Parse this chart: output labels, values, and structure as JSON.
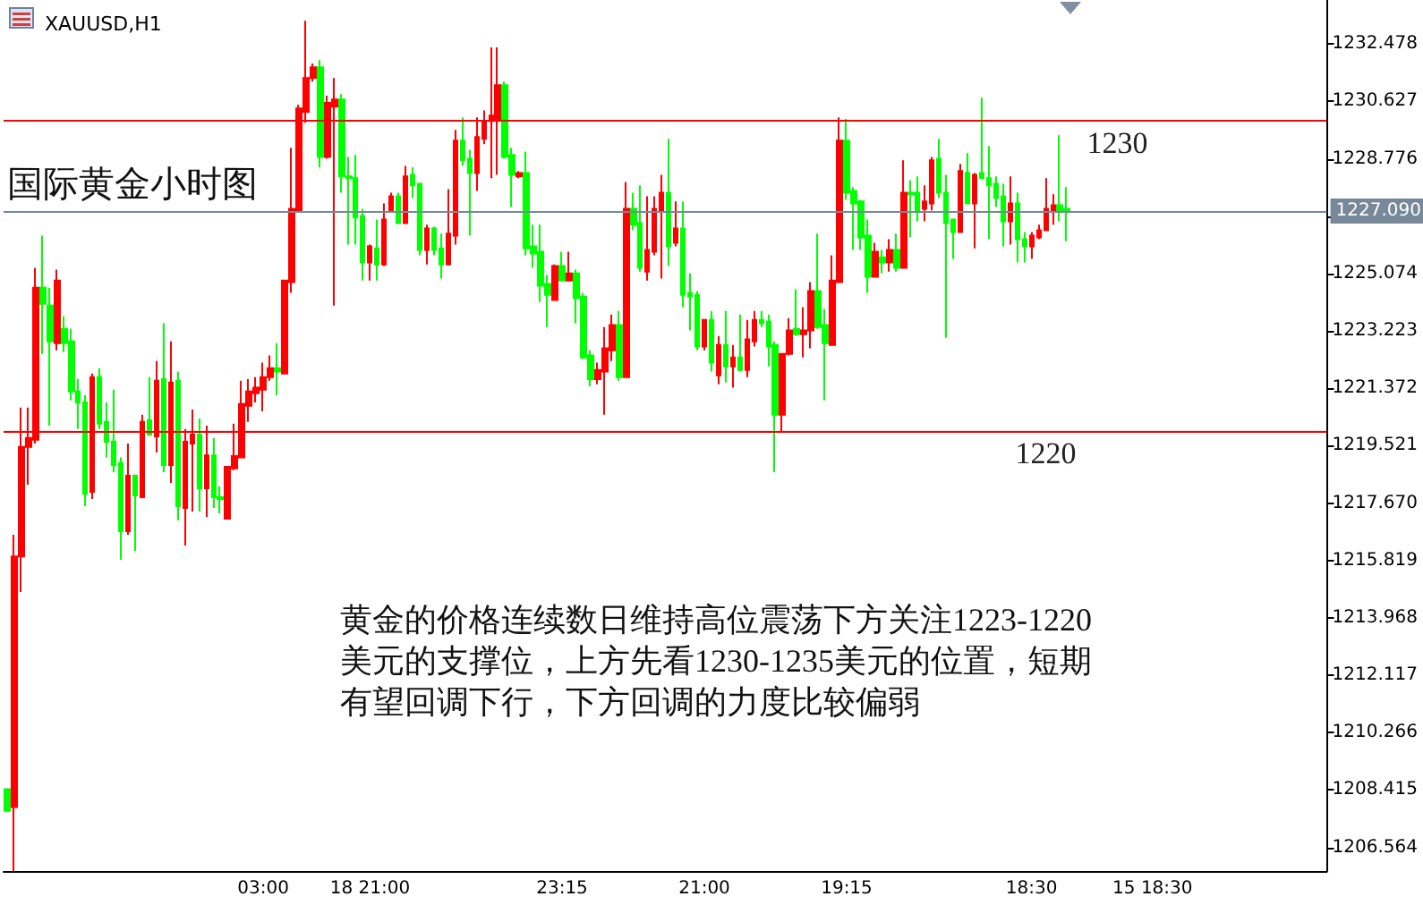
{
  "chart_data": {
    "type": "candlestick",
    "title": "XAUUSD,H1",
    "categories": [
      null,
      null,
      null,
      null,
      null,
      null,
      null,
      null,
      null,
      null,
      null,
      null,
      null,
      null,
      null,
      null,
      null,
      null,
      null,
      null,
      null,
      null,
      null,
      null,
      null,
      null,
      null,
      null,
      null,
      null,
      null,
      null,
      null,
      null,
      null,
      null,
      "03:00",
      null,
      null,
      null,
      null,
      null,
      null,
      null,
      null,
      null,
      null,
      null,
      null,
      null,
      null,
      "18 21:00",
      null,
      null,
      null,
      null,
      null,
      null,
      null,
      null,
      null,
      null,
      null,
      null,
      null,
      null,
      null,
      null,
      null,
      null,
      null,
      null,
      null,
      null,
      null,
      null,
      null,
      null,
      "23:15",
      null,
      null,
      null,
      null,
      null,
      null,
      null,
      null,
      null,
      null,
      null,
      null,
      null,
      null,
      null,
      null,
      null,
      null,
      null,
      "21:00",
      null,
      null,
      null,
      null,
      null,
      null,
      null,
      null,
      null,
      null,
      null,
      null,
      null,
      null,
      null,
      null,
      null,
      null,
      null,
      "19:15",
      null,
      null,
      null,
      null,
      null,
      null,
      null,
      null,
      null,
      null,
      null,
      null,
      null,
      null,
      null,
      null,
      null,
      null,
      null,
      null,
      null,
      null,
      null,
      null,
      null,
      "18:30",
      null,
      null,
      null,
      null,
      null,
      null,
      null,
      null,
      null,
      null,
      null,
      null,
      null,
      null,
      null,
      null,
      "15 18:30",
      null,
      null,
      null,
      null,
      null,
      null,
      null,
      null,
      null,
      null,
      null,
      null,
      null,
      null,
      null,
      null,
      null,
      null,
      null,
      null,
      null,
      null,
      null,
      null
    ],
    "ohlc": [
      [
        1208.44,
        1208.44,
        1207.74,
        1207.74
      ],
      [
        1207.86,
        1216.65,
        1205.8,
        1215.95
      ],
      [
        1215.95,
        1220.75,
        1214.8,
        1219.48
      ],
      [
        1219.48,
        1220.75,
        1218.26,
        1219.77
      ],
      [
        1219.71,
        1225.26,
        1219.59,
        1224.62
      ],
      [
        1224.62,
        1226.3,
        1222.48,
        1224.1
      ],
      [
        1224.04,
        1224.62,
        1220.17,
        1222.89
      ],
      [
        1222.83,
        1225.2,
        1222.6,
        1224.85
      ],
      [
        1223.29,
        1223.7,
        1222.54,
        1222.83
      ],
      [
        1222.89,
        1223.29,
        1220.98,
        1221.27
      ],
      [
        1221.27,
        1221.67,
        1220.06,
        1220.92
      ],
      [
        1220.92,
        1221.15,
        1217.57,
        1217.97
      ],
      [
        1218.03,
        1221.85,
        1217.8,
        1221.73
      ],
      [
        1221.73,
        1222.02,
        1220.06,
        1220.23
      ],
      [
        1220.29,
        1220.92,
        1219.14,
        1219.65
      ],
      [
        1219.65,
        1221.33,
        1218.67,
        1218.9
      ],
      [
        1218.96,
        1219.14,
        1215.84,
        1216.76
      ],
      [
        1216.76,
        1219.59,
        1216.65,
        1218.55
      ],
      [
        1218.55,
        1218.55,
        1216.13,
        1217.92
      ],
      [
        1217.86,
        1220.52,
        1217.86,
        1220.29
      ],
      [
        1220.34,
        1221.73,
        1219.88,
        1219.88
      ],
      [
        1219.82,
        1222.25,
        1219.3,
        1221.62
      ],
      [
        1221.67,
        1223.47,
        1218.67,
        1218.9
      ],
      [
        1218.9,
        1222.89,
        1218.32,
        1221.56
      ],
      [
        1221.62,
        1221.91,
        1217.11,
        1217.57
      ],
      [
        1217.51,
        1220.06,
        1216.3,
        1219.65
      ],
      [
        1219.59,
        1220.69,
        1217.4,
        1219.88
      ],
      [
        1219.88,
        1220.4,
        1217.4,
        1218.15
      ],
      [
        1218.15,
        1220.17,
        1217.22,
        1219.21
      ],
      [
        1219.21,
        1219.77,
        1217.51,
        1217.86
      ],
      [
        1217.86,
        1218.21,
        1217.34,
        1217.8
      ],
      [
        1217.17,
        1218.84,
        1217.17,
        1218.84
      ],
      [
        1218.79,
        1220.23,
        1218.73,
        1219.19
      ],
      [
        1219.14,
        1221.62,
        1219.14,
        1220.87
      ],
      [
        1220.81,
        1221.67,
        1220.29,
        1221.27
      ],
      [
        1221.21,
        1221.73,
        1220.92,
        1221.39
      ],
      [
        1221.33,
        1222.2,
        1220.63,
        1221.73
      ],
      [
        1221.73,
        1222.43,
        1221.62,
        1222.02
      ],
      [
        1222.02,
        1222.83,
        1221.15,
        1221.91
      ],
      [
        1221.85,
        1224.85,
        1221.85,
        1224.85
      ],
      [
        1224.8,
        1229.13,
        1224.45,
        1227.16
      ],
      [
        1227.11,
        1230.52,
        1227.11,
        1230.4
      ],
      [
        1230.29,
        1233.23,
        1229.94,
        1231.38
      ],
      [
        1231.38,
        1231.85,
        1231.27,
        1231.73
      ],
      [
        1231.73,
        1231.96,
        1228.5,
        1228.84
      ],
      [
        1228.84,
        1230.81,
        1228.78,
        1230.58
      ],
      [
        1230.46,
        1231.38,
        1224.04,
        1230.69
      ],
      [
        1230.69,
        1230.86,
        1227.68,
        1228.21
      ],
      [
        1228.21,
        1228.84,
        1226.01,
        1228.15
      ],
      [
        1228.15,
        1228.9,
        1226.01,
        1226.88
      ],
      [
        1226.93,
        1227.16,
        1224.85,
        1225.43
      ],
      [
        1225.43,
        1226.01,
        1224.85,
        1225.95
      ],
      [
        1225.89,
        1226.82,
        1224.85,
        1225.37
      ],
      [
        1225.37,
        1227.34,
        1225.32,
        1226.82
      ],
      [
        1227.11,
        1227.68,
        1227.11,
        1227.57
      ],
      [
        1227.57,
        1227.68,
        1226.7,
        1226.7
      ],
      [
        1226.7,
        1228.55,
        1226.7,
        1228.21
      ],
      [
        1228.26,
        1228.5,
        1227.51,
        1227.92
      ],
      [
        1227.97,
        1227.97,
        1225.66,
        1225.84
      ],
      [
        1225.84,
        1226.65,
        1225.37,
        1226.53
      ],
      [
        1226.53,
        1226.59,
        1225.66,
        1225.84
      ],
      [
        1225.89,
        1226.36,
        1224.91,
        1225.37
      ],
      [
        1225.37,
        1227.8,
        1225.37,
        1226.36
      ],
      [
        1226.3,
        1229.71,
        1226.01,
        1229.36
      ],
      [
        1229.36,
        1230.11,
        1228.55,
        1228.73
      ],
      [
        1228.78,
        1229.07,
        1226.3,
        1228.32
      ],
      [
        1228.32,
        1230.11,
        1227.74,
        1229.48
      ],
      [
        1229.42,
        1230.34,
        1229.25,
        1230
      ],
      [
        1230,
        1232.37,
        1228.15,
        1230.17
      ],
      [
        1230.06,
        1232.37,
        1228.26,
        1231.15
      ],
      [
        1231.15,
        1231.27,
        1228.78,
        1228.84
      ],
      [
        1228.9,
        1229.13,
        1227.22,
        1228.26
      ],
      [
        1228.21,
        1228.38,
        1228.15,
        1228.32
      ],
      [
        1228.32,
        1229.01,
        1225.66,
        1225.89
      ],
      [
        1225.95,
        1226.65,
        1225.26,
        1225.72
      ],
      [
        1225.78,
        1226.65,
        1224.16,
        1224.68
      ],
      [
        1224.74,
        1225.03,
        1223.35,
        1224.39
      ],
      [
        1224.22,
        1225.37,
        1224.22,
        1225.32
      ],
      [
        1225.32,
        1225.78,
        1224.85,
        1224.85
      ],
      [
        1224.85,
        1225.78,
        1224.85,
        1225.08
      ],
      [
        1225.08,
        1225.2,
        1223.47,
        1224.28
      ],
      [
        1224.33,
        1224.45,
        1222.31,
        1222.37
      ],
      [
        1222.43,
        1222.6,
        1221.44,
        1221.67
      ],
      [
        1221.67,
        1222.2,
        1221.5,
        1221.96
      ],
      [
        1221.91,
        1223.35,
        1220.52,
        1222.66
      ],
      [
        1222.6,
        1223.75,
        1222.25,
        1223.41
      ],
      [
        1223.41,
        1223.87,
        1221.62,
        1221.73
      ],
      [
        1221.73,
        1228.03,
        1221.73,
        1227.16
      ],
      [
        1227.16,
        1227.68,
        1226.47,
        1226.65
      ],
      [
        1226.7,
        1227.92,
        1225.14,
        1225.26
      ],
      [
        1225.14,
        1227.57,
        1224.85,
        1225.84
      ],
      [
        1225.78,
        1227.57,
        1225.66,
        1227.16
      ],
      [
        1227.11,
        1228.26,
        1224.91,
        1227.68
      ],
      [
        1227.68,
        1229.42,
        1225.32,
        1225.95
      ],
      [
        1226.07,
        1227.4,
        1225.95,
        1226.53
      ],
      [
        1226.53,
        1227.4,
        1223.99,
        1224.39
      ],
      [
        1224.45,
        1225.08,
        1223.24,
        1224.33
      ],
      [
        1224.39,
        1224.51,
        1222.6,
        1222.72
      ],
      [
        1222.72,
        1223.58,
        1222.6,
        1223.58
      ],
      [
        1223.58,
        1223.87,
        1221.91,
        1222.2
      ],
      [
        1221.79,
        1223.06,
        1221.5,
        1222.77
      ],
      [
        1222.77,
        1223.87,
        1221.56,
        1222.08
      ],
      [
        1222.08,
        1222.77,
        1221.39,
        1222.37
      ],
      [
        1222.37,
        1223.75,
        1221.91,
        1221.96
      ],
      [
        1221.96,
        1223.58,
        1221.73,
        1222.95
      ],
      [
        1222.89,
        1223.87,
        1222.72,
        1223.58
      ],
      [
        1223.58,
        1223.87,
        1223.35,
        1223.47
      ],
      [
        1223.52,
        1223.75,
        1222.08,
        1222.72
      ],
      [
        1222.77,
        1222.89,
        1218.67,
        1220.52
      ],
      [
        1220.52,
        1222.48,
        1219.94,
        1222.48
      ],
      [
        1222.48,
        1223.64,
        1222.43,
        1223.24
      ],
      [
        1223.29,
        1224.57,
        1223.06,
        1223.12
      ],
      [
        1223.12,
        1223.99,
        1222.37,
        1223.24
      ],
      [
        1223.24,
        1224.8,
        1222.66,
        1224.51
      ],
      [
        1224.51,
        1226.36,
        1223.29,
        1223.35
      ],
      [
        1223.41,
        1223.93,
        1220.98,
        1222.83
      ],
      [
        1222.77,
        1225.66,
        1222.77,
        1224.85
      ],
      [
        1224.8,
        1230.11,
        1224.8,
        1229.36
      ],
      [
        1229.36,
        1230.06,
        1227.45,
        1227.68
      ],
      [
        1227.74,
        1227.86,
        1225.84,
        1227.34
      ],
      [
        1227.4,
        1227.45,
        1225.84,
        1226.24
      ],
      [
        1226.3,
        1226.82,
        1224.45,
        1224.97
      ],
      [
        1224.97,
        1226.07,
        1224.97,
        1225.78
      ],
      [
        1225.6,
        1225.84,
        1225.08,
        1225.43
      ],
      [
        1225.43,
        1226.18,
        1225.14,
        1225.84
      ],
      [
        1225.84,
        1226.36,
        1225.14,
        1225.26
      ],
      [
        1225.26,
        1228.73,
        1225.26,
        1227.68
      ],
      [
        1227.68,
        1228.09,
        1226.24,
        1227.63
      ],
      [
        1227.68,
        1228.21,
        1226.76,
        1227.11
      ],
      [
        1227.16,
        1227.92,
        1226.76,
        1227.4
      ],
      [
        1227.34,
        1228.84,
        1227.11,
        1228.73
      ],
      [
        1228.78,
        1229.42,
        1227.51,
        1227.68
      ],
      [
        1227.68,
        1228.26,
        1223,
        1226.7
      ],
      [
        1226.82,
        1226.82,
        1225.55,
        1226.41
      ],
      [
        1226.41,
        1228.61,
        1226.41,
        1228.38
      ],
      [
        1228.32,
        1228.96,
        1227.34,
        1227.34
      ],
      [
        1227.34,
        1228.32,
        1225.89,
        1228.26
      ],
      [
        1228.32,
        1230.75,
        1228.15,
        1228.15
      ],
      [
        1228.15,
        1229.19,
        1226.18,
        1227.92
      ],
      [
        1227.97,
        1228.21,
        1227.22,
        1227.51
      ],
      [
        1227.57,
        1227.97,
        1225.95,
        1226.76
      ],
      [
        1226.76,
        1228.21,
        1226.01,
        1227.34
      ],
      [
        1227.34,
        1227.68,
        1225.43,
        1226.18
      ],
      [
        1226.18,
        1226.41,
        1225.43,
        1225.95
      ],
      [
        1225.95,
        1226.41,
        1225.55,
        1226.3
      ],
      [
        1226.24,
        1226.65,
        1226.18,
        1226.47
      ],
      [
        1226.47,
        1228.15,
        1226.47,
        1227.16
      ],
      [
        1227.11,
        1227.63,
        1226.65,
        1227.28
      ],
      [
        1227.28,
        1229.54,
        1226.76,
        1227.11
      ],
      [
        1227.16,
        1227.86,
        1226.12,
        1227.09
      ],
      null,
      null,
      null,
      null,
      null,
      null,
      null,
      null,
      null,
      null,
      null,
      null,
      null,
      null,
      null,
      null,
      null,
      null,
      null,
      null,
      null,
      null,
      null,
      null,
      null,
      null,
      null,
      null,
      null,
      null,
      null,
      null,
      null,
      null,
      null,
      null
    ],
    "colors": [
      "#00ff00",
      "#ff0000",
      "#ff0000",
      "#ff0000",
      "#ff0000",
      "#00ff00",
      "#00ff00",
      "#ff0000",
      "#00ff00",
      "#00ff00",
      "#00ff00",
      "#00ff00",
      "#ff0000",
      "#00ff00",
      "#00ff00",
      "#00ff00",
      "#00ff00",
      "#ff0000",
      "#00ff00",
      "#ff0000",
      "#00ff00",
      "#ff0000",
      "#00ff00",
      "#ff0000",
      "#00ff00",
      "#ff0000",
      "#ff0000",
      "#00ff00",
      "#ff0000",
      "#00ff00",
      "#00ff00",
      "#ff0000",
      "#ff0000",
      "#ff0000",
      "#ff0000",
      "#ff0000",
      "#ff0000",
      "#ff0000",
      "#00ff00",
      "#ff0000",
      "#ff0000",
      "#ff0000",
      "#ff0000",
      "#ff0000",
      "#00ff00",
      "#ff0000",
      "#ff0000",
      "#00ff00",
      "#00ff00",
      "#00ff00",
      "#00ff00",
      "#ff0000",
      "#00ff00",
      "#ff0000",
      "#ff0000",
      "#00ff00",
      "#ff0000",
      "#00ff00",
      "#00ff00",
      "#ff0000",
      "#00ff00",
      "#00ff00",
      "#ff0000",
      "#ff0000",
      "#00ff00",
      "#00ff00",
      "#ff0000",
      "#ff0000",
      "#ff0000",
      "#ff0000",
      "#00ff00",
      "#00ff00",
      "#ff0000",
      "#00ff00",
      "#00ff00",
      "#00ff00",
      "#00ff00",
      "#ff0000",
      "#00ff00",
      "#ff0000",
      "#00ff00",
      "#00ff00",
      "#00ff00",
      "#ff0000",
      "#ff0000",
      "#ff0000",
      "#00ff00",
      "#ff0000",
      "#00ff00",
      "#00ff00",
      "#ff0000",
      "#ff0000",
      "#ff0000",
      "#00ff00",
      "#ff0000",
      "#00ff00",
      "#00ff00",
      "#00ff00",
      "#ff0000",
      "#00ff00",
      "#ff0000",
      "#00ff00",
      "#ff0000",
      "#00ff00",
      "#ff0000",
      "#ff0000",
      "#00ff00",
      "#00ff00",
      "#00ff00",
      "#ff0000",
      "#ff0000",
      "#00ff00",
      "#ff0000",
      "#ff0000",
      "#00ff00",
      "#00ff00",
      "#ff0000",
      "#ff0000",
      "#00ff00",
      "#00ff00",
      "#00ff00",
      "#00ff00",
      "#ff0000",
      "#00ff00",
      "#ff0000",
      "#00ff00",
      "#ff0000",
      "#00ff00",
      "#00ff00",
      "#ff0000",
      "#ff0000",
      "#00ff00",
      "#00ff00",
      "#00ff00",
      "#ff0000",
      "#00ff00",
      "#ff0000",
      "#00ff00",
      "#00ff00",
      "#00ff00",
      "#00ff00",
      "#ff0000",
      "#00ff00",
      "#00ff00",
      "#ff0000",
      "#ff0000",
      "#ff0000",
      "#ff0000",
      "#00ff00",
      "#00ff00",
      null,
      null,
      null,
      null,
      null,
      null,
      null,
      null,
      null,
      null,
      null,
      null,
      null,
      null,
      null,
      null,
      null,
      null,
      null,
      null,
      null,
      null,
      null,
      null,
      null,
      null,
      null,
      null,
      null,
      null,
      null,
      null,
      null,
      null,
      null,
      null
    ],
    "ylim": [
      1205.8,
      1233.9
    ],
    "yticks": [
      1206.564,
      1208.415,
      1210.266,
      1212.117,
      1213.968,
      1215.819,
      {
        "value": 1217.67,
        "label": "1217.670"
      },
      1219.521,
      1221.372,
      1223.223,
      1225.074,
      {
        "value": 1226.925,
        "label": null
      },
      1228.776,
      1230.627,
      1232.478
    ],
    "ref_lines": [
      {
        "axis": "y",
        "value": 1230,
        "label": "1230",
        "color": "#ff0000"
      },
      {
        "axis": "y",
        "value": 1220,
        "label": "1220",
        "color": "#ff0000"
      },
      {
        "axis": "y",
        "value": 1227.09,
        "label": "1227.090",
        "color": "#778899"
      }
    ],
    "annotations": [
      "国际黄金小时图",
      "黄金的价格连续数日维持高位震荡下方关注1223-1220美元的支撑位，上方先看1230-1235美元的位置，短期有望回调下行，下方回调的力度比较偏弱"
    ],
    "grid": false
  }
}
